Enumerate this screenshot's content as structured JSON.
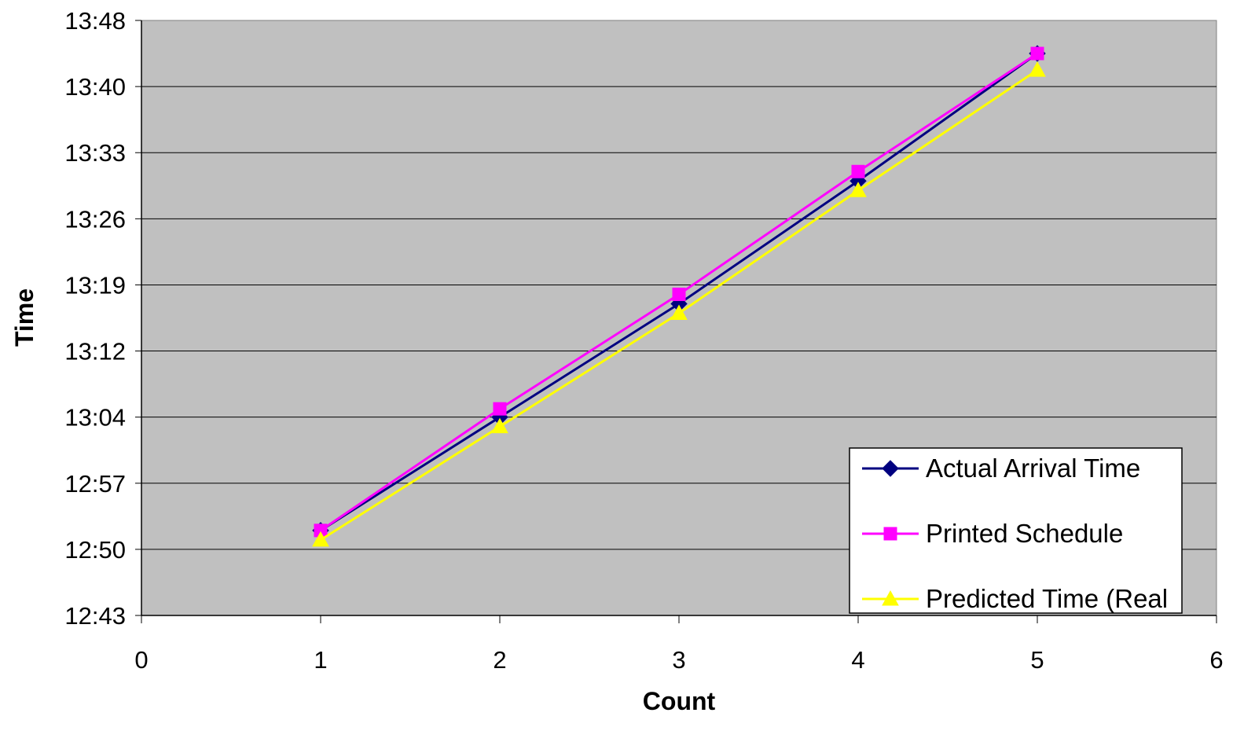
{
  "chart_data": {
    "type": "line",
    "title": "",
    "xlabel": "Count",
    "ylabel": "Time",
    "xlim": [
      0,
      6
    ],
    "ylim": [
      "12:43",
      "13:48"
    ],
    "x_ticks": [
      "0",
      "1",
      "2",
      "3",
      "4",
      "5",
      "6"
    ],
    "y_ticks": [
      "12:43",
      "12:50",
      "12:57",
      "13:04",
      "13:12",
      "13:19",
      "13:26",
      "13:33",
      "13:40",
      "13:48"
    ],
    "grid": "horizontal",
    "legend_position": "bottom-right",
    "plot_background": "#C0C0C0",
    "x": [
      1,
      2,
      3,
      4,
      5
    ],
    "series": [
      {
        "name": "Actual Arrival Time",
        "color": "#000080",
        "marker": "diamond",
        "values": [
          "12:52",
          "13:04",
          "13:17",
          "13:30",
          "13:44"
        ]
      },
      {
        "name": "Printed Schedule",
        "color": "#FF00FF",
        "marker": "square",
        "values": [
          "12:52",
          "13:05",
          "13:18",
          "13:31",
          "13:44"
        ]
      },
      {
        "name": "Predicted Time (Real",
        "color": "#FFFF00",
        "marker": "triangle",
        "values": [
          "12:51",
          "13:03",
          "13:16",
          "13:29",
          "13:42"
        ]
      }
    ]
  }
}
